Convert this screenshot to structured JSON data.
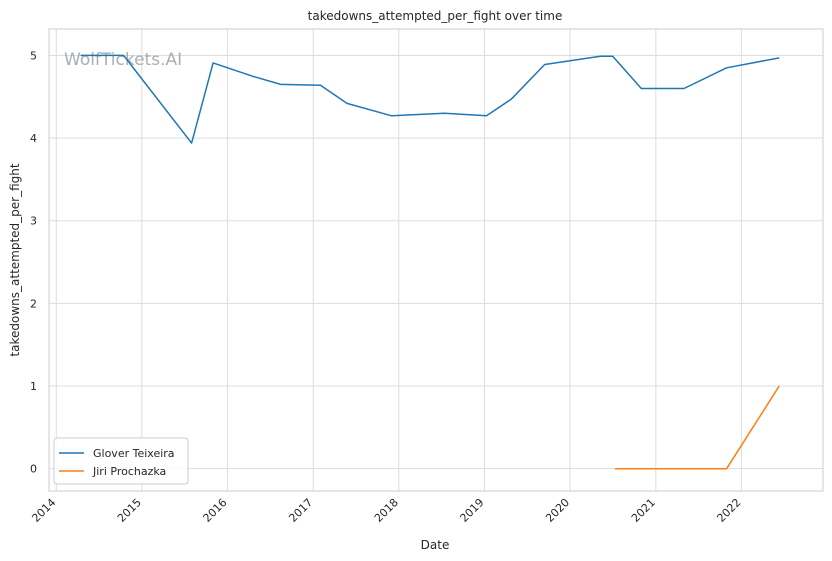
{
  "chart_data": {
    "type": "line",
    "title": "takedowns_attempted_per_fight over time",
    "xlabel": "Date",
    "ylabel": "takedowns_attempted_per_fight",
    "watermark": "WolfTickets.AI",
    "x_ticks": [
      "2014",
      "2015",
      "2016",
      "2017",
      "2018",
      "2019",
      "2020",
      "2021",
      "2022"
    ],
    "y_ticks": [
      "0",
      "1",
      "2",
      "3",
      "4",
      "5"
    ],
    "xlim": [
      "2013-12-01",
      "2022-12-15"
    ],
    "ylim": [
      -0.27,
      5.32
    ],
    "grid": true,
    "legend_position": "lower-left",
    "series": [
      {
        "name": "Glover Teixeira",
        "color": "#1f77b4",
        "points": [
          [
            "2014-04-15",
            5.0
          ],
          [
            "2014-10-15",
            5.0
          ],
          [
            "2015-08-01",
            3.94
          ],
          [
            "2015-11-01",
            4.91
          ],
          [
            "2016-04-15",
            4.75
          ],
          [
            "2016-08-15",
            4.65
          ],
          [
            "2017-02-01",
            4.64
          ],
          [
            "2017-05-25",
            4.42
          ],
          [
            "2017-12-01",
            4.27
          ],
          [
            "2018-07-15",
            4.3
          ],
          [
            "2019-01-10",
            4.27
          ],
          [
            "2019-04-25",
            4.47
          ],
          [
            "2019-09-15",
            4.89
          ],
          [
            "2020-05-10",
            4.99
          ],
          [
            "2020-07-01",
            4.99
          ],
          [
            "2020-10-31",
            4.6
          ],
          [
            "2021-05-01",
            4.6
          ],
          [
            "2021-10-30",
            4.85
          ],
          [
            "2022-06-11",
            4.97
          ]
        ]
      },
      {
        "name": "Jiri Prochazka",
        "color": "#ff7f0e",
        "points": [
          [
            "2020-07-11",
            0.0
          ],
          [
            "2021-05-01",
            0.0
          ],
          [
            "2021-10-30",
            0.0
          ],
          [
            "2022-06-11",
            1.0
          ]
        ]
      }
    ]
  }
}
